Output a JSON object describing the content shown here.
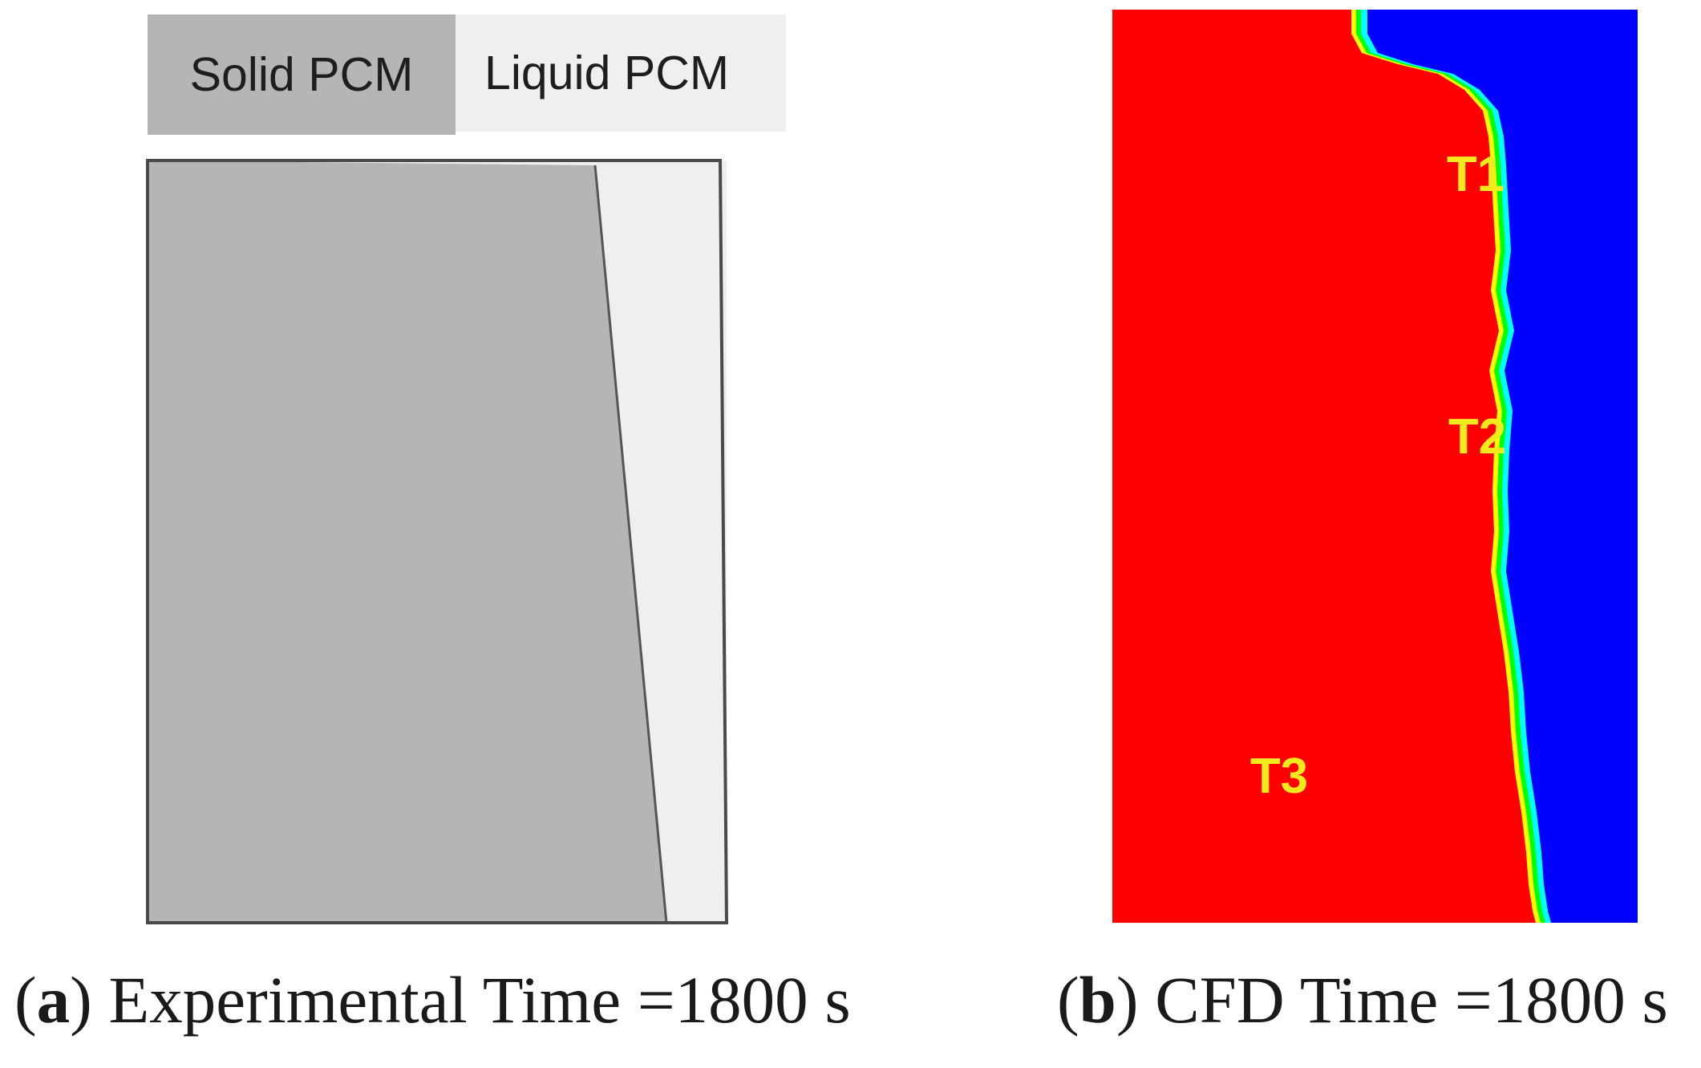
{
  "legend": {
    "solid_label": "Solid PCM",
    "liquid_label": "Liquid PCM",
    "solid_color": "#b5b5b5",
    "liquid_color": "#efefef"
  },
  "cfd": {
    "liquid_color": "#ff0000",
    "solid_color": "#0000ff",
    "interface_colors": [
      "#00ffff",
      "#00ff00",
      "#ffff00"
    ],
    "probes": [
      "T1",
      "T2",
      "T3"
    ]
  },
  "captions": {
    "a": {
      "prefix": "(",
      "letter": "a",
      "text": ") Experimental Time =1800 s"
    },
    "b": {
      "prefix": "(",
      "letter": "b",
      "text": ") CFD Time =1800 s"
    }
  }
}
